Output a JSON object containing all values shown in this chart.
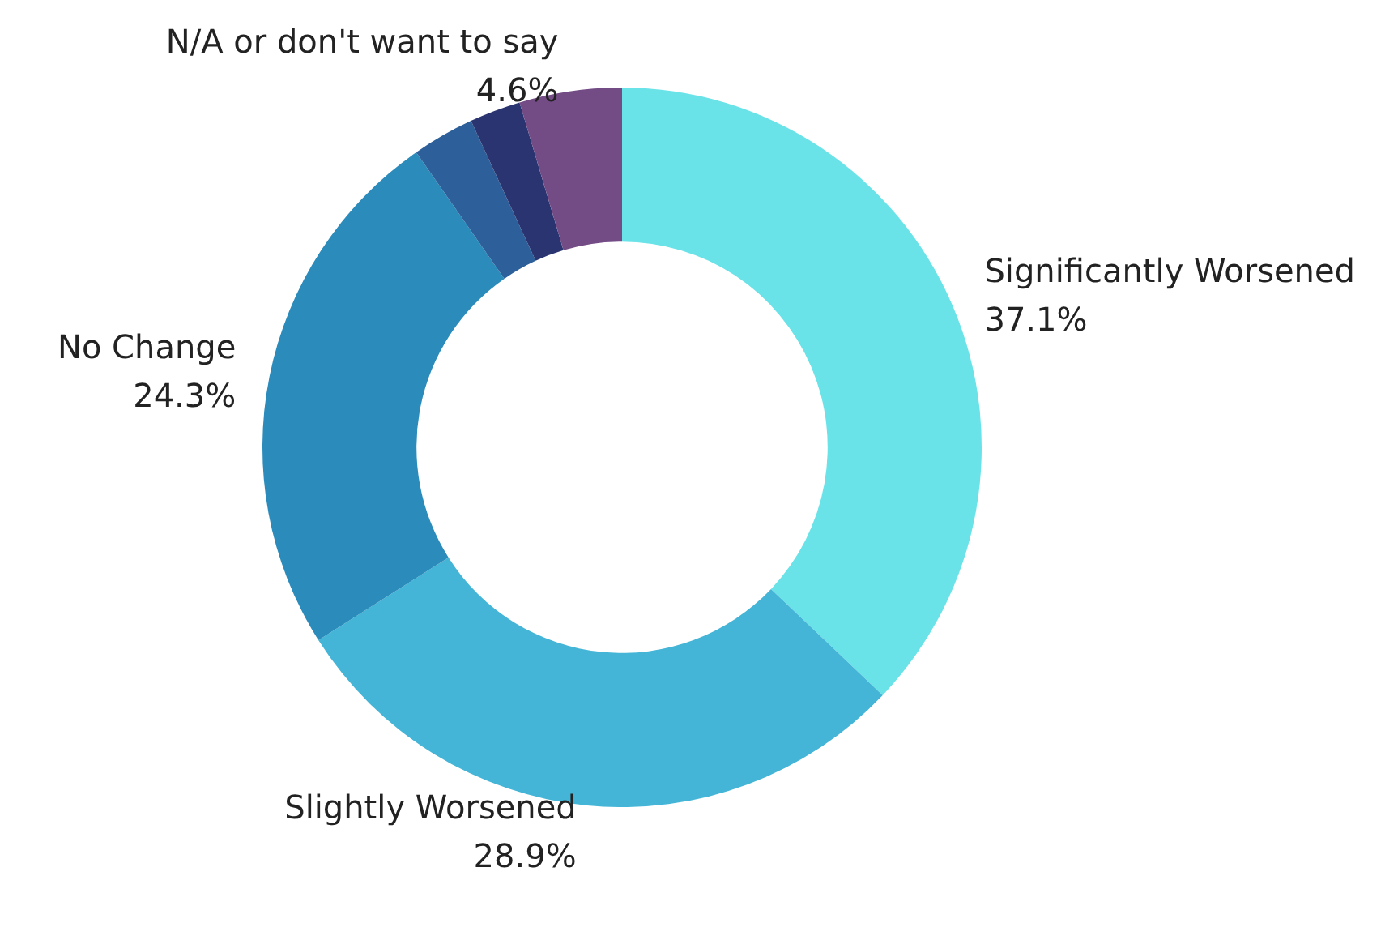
{
  "chart_data": {
    "type": "donut",
    "categories": [
      "Significantly Worsened",
      "Slightly Worsened",
      "No Change",
      null,
      null,
      "N/A or don't want to say"
    ],
    "values": [
      37.1,
      28.9,
      24.3,
      2.8,
      2.3,
      4.6
    ],
    "colors": [
      "#6ae3e8",
      "#44b5d6",
      "#2b8bbb",
      "#2d5f9a",
      "#2a3470",
      "#734c86"
    ],
    "value_labels": [
      "37.1%",
      "28.9%",
      "24.3%",
      null,
      null,
      "4.6%"
    ],
    "legend": false
  }
}
